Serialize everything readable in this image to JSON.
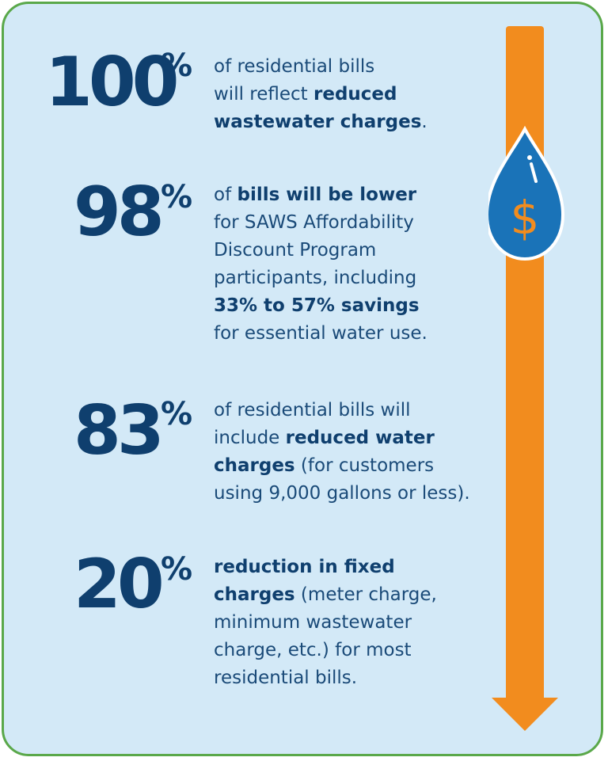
{
  "stats": [
    {
      "number": "100",
      "percent_sign": "%",
      "parts": [
        {
          "text": "of residential bills",
          "bold": false
        },
        {
          "text": "will reflect ",
          "bold": false
        },
        {
          "text": "reduced",
          "bold": true
        },
        {
          "text": "wastewater charges",
          "bold": true
        },
        {
          "text": ".",
          "bold": false
        }
      ]
    },
    {
      "number": "98",
      "percent_sign": "%",
      "parts": [
        {
          "text": "of ",
          "bold": false
        },
        {
          "text": "bills will be lower",
          "bold": true
        },
        {
          "text": "for SAWS Affordability",
          "bold": false
        },
        {
          "text": "Discount Program",
          "bold": false
        },
        {
          "text": "participants, including",
          "bold": false
        },
        {
          "text": "33% to 57% savings",
          "bold": true
        },
        {
          "text": "for essential water use.",
          "bold": false
        }
      ]
    },
    {
      "number": "83",
      "percent_sign": "%",
      "parts": [
        {
          "text": "of residential bills will",
          "bold": false
        },
        {
          "text": "include ",
          "bold": false
        },
        {
          "text": "reduced water",
          "bold": true
        },
        {
          "text": "charges",
          "bold": true
        },
        {
          "text": " (for customers",
          "bold": false
        },
        {
          "text": "using 9,000 gallons or less).",
          "bold": false
        }
      ]
    },
    {
      "number": "20",
      "percent_sign": "%",
      "parts": [
        {
          "text": "reduction in fixed",
          "bold": true
        },
        {
          "text": "charges",
          "bold": true
        },
        {
          "text": " (meter charge,",
          "bold": false
        },
        {
          "text": "minimum wastewater",
          "bold": false
        },
        {
          "text": "charge, etc.) for most",
          "bold": false
        },
        {
          "text": "residential bills.",
          "bold": false
        }
      ]
    }
  ],
  "icon": {
    "symbol": "$",
    "name": "water-drop-dollar-icon",
    "arrow_color": "#f28c1e",
    "drop_color": "#1a73b8"
  }
}
